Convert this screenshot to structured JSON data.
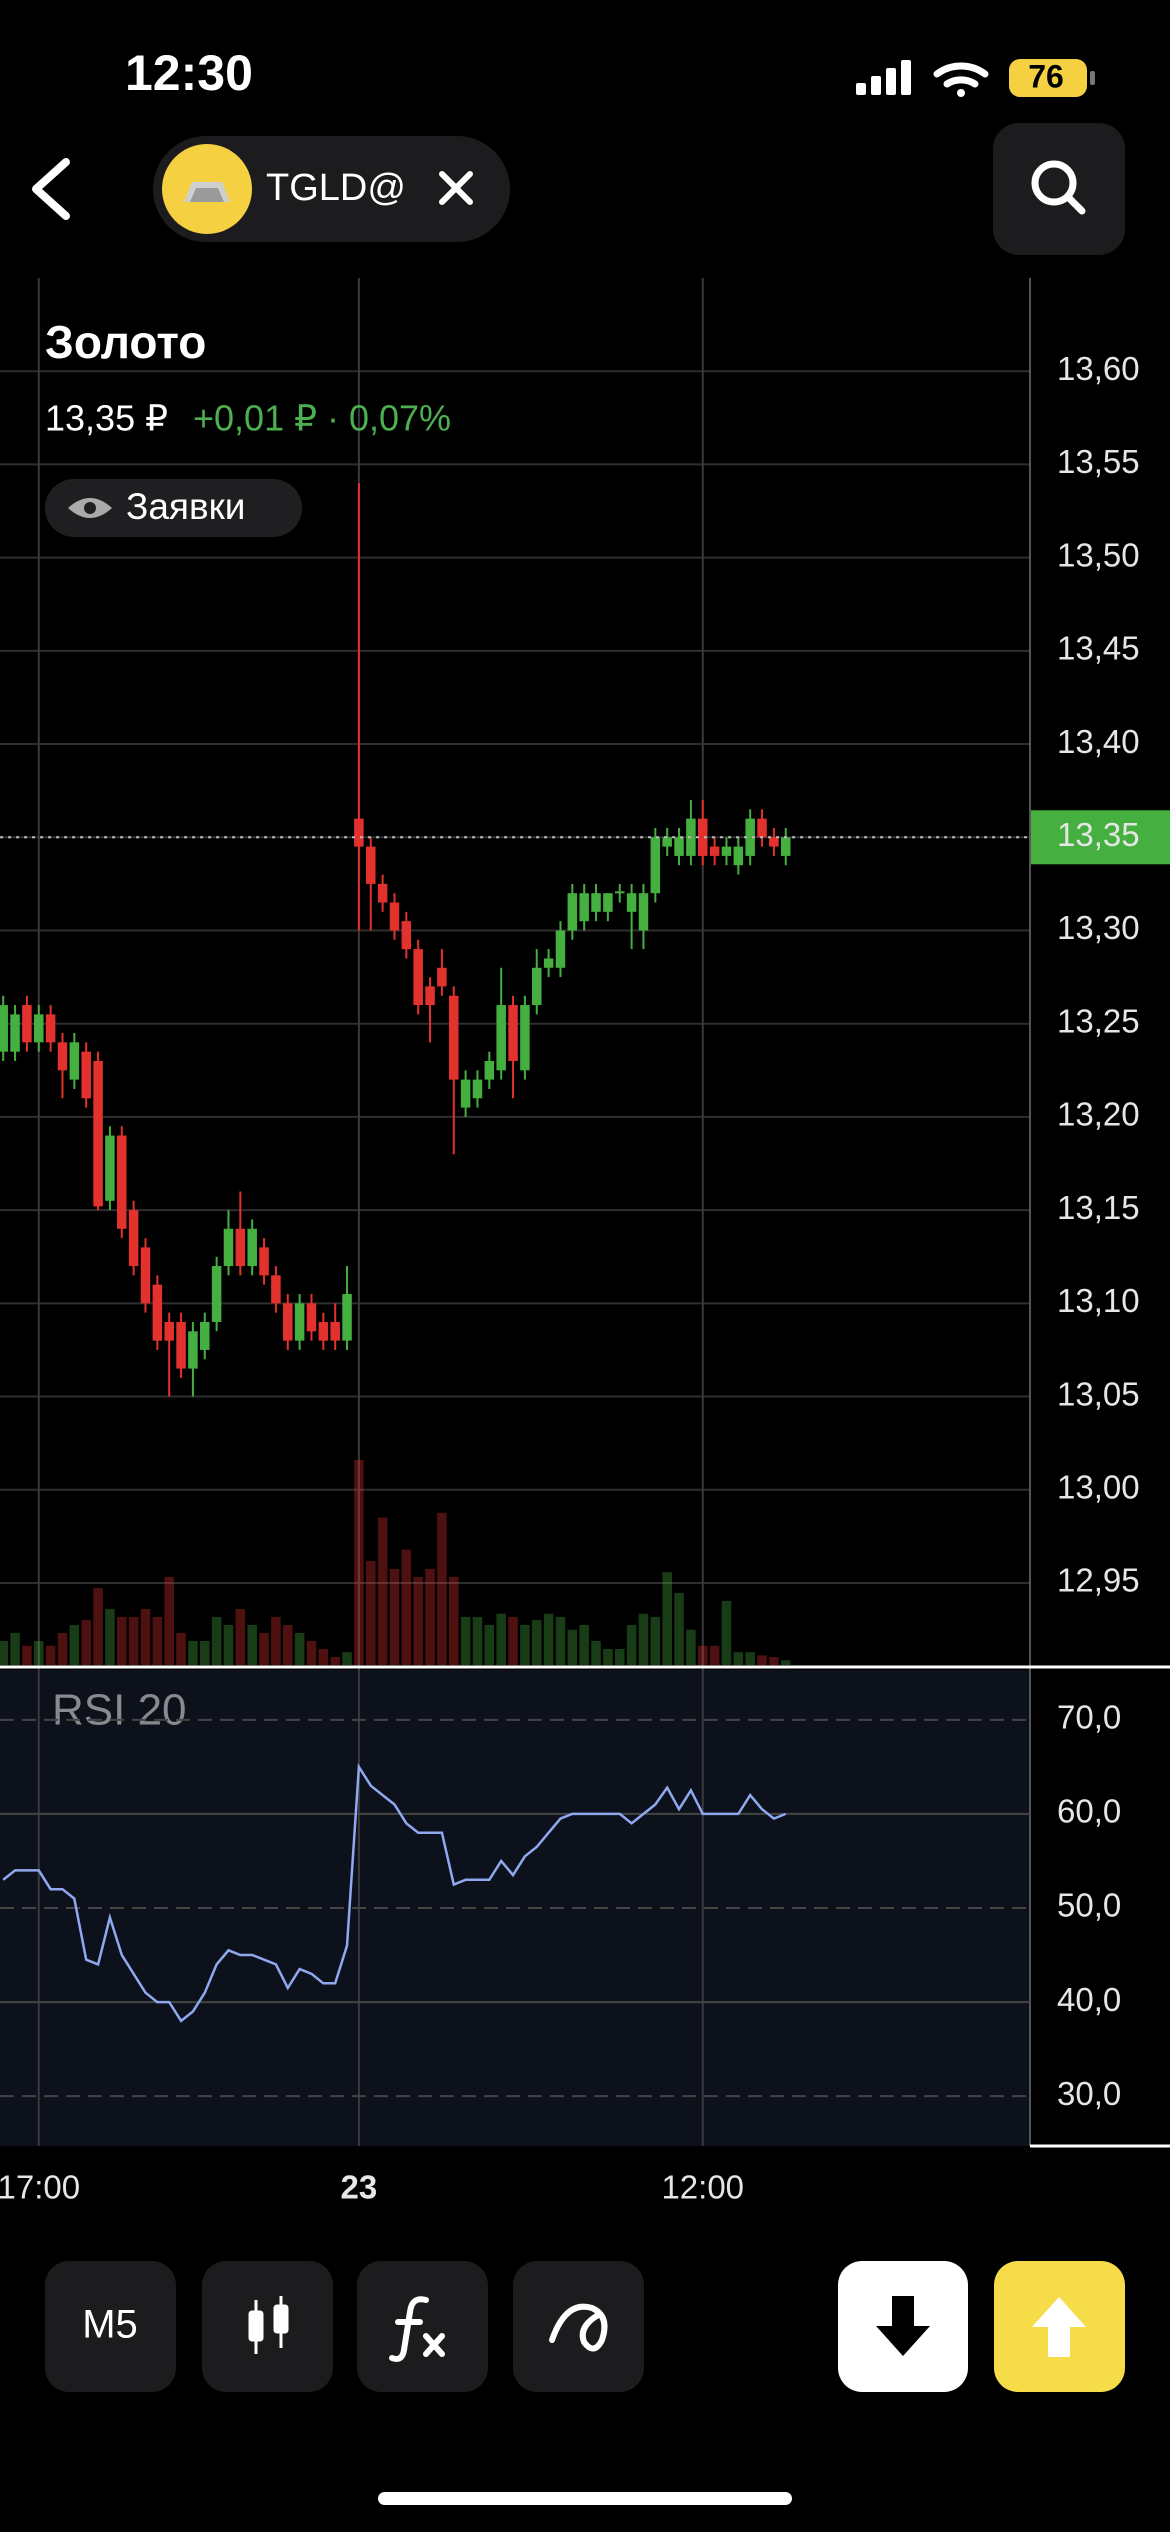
{
  "status_bar": {
    "time": "12:30",
    "battery": "76"
  },
  "header": {
    "ticker": "TGLD@"
  },
  "instrument": {
    "name": "Золото",
    "price": "13,35 ₽",
    "change": "+0,01 ₽ · 0,07%",
    "orders_button": "Заявки"
  },
  "toolbar": {
    "timeframe": "M5"
  },
  "chart_data": [
    {
      "type": "candlestick",
      "xlim": [
        -0.27,
        86.6
      ],
      "xticks": [
        {
          "value": 3,
          "label": "17:00"
        },
        {
          "value": 30,
          "label": "23"
        },
        {
          "value": 59,
          "label": "12:00"
        }
      ],
      "ylim": [
        12.906,
        13.65
      ],
      "yticks": [
        {
          "value": 13.6,
          "label": "13,60"
        },
        {
          "value": 13.55,
          "label": "13,55"
        },
        {
          "value": 13.5,
          "label": "13,50"
        },
        {
          "value": 13.45,
          "label": "13,45"
        },
        {
          "value": 13.4,
          "label": "13,40"
        },
        {
          "value": 13.35,
          "label": "13,35"
        },
        {
          "value": 13.3,
          "label": "13,30"
        },
        {
          "value": 13.25,
          "label": "13,25"
        },
        {
          "value": 13.2,
          "label": "13,20"
        },
        {
          "value": 13.15,
          "label": "13,15"
        },
        {
          "value": 13.1,
          "label": "13,10"
        },
        {
          "value": 13.05,
          "label": "13,05"
        },
        {
          "value": 13.0,
          "label": "13,00"
        },
        {
          "value": 12.95,
          "label": "12,95"
        }
      ],
      "last_price": {
        "value": 13.35,
        "label": "13,35"
      },
      "up_color": "#45b03f",
      "down_color": "#e3322e",
      "grid": true,
      "open": [
        13.235,
        13.235,
        13.26,
        13.24,
        13.255,
        13.24,
        13.22,
        13.235,
        13.23,
        13.155,
        13.19,
        13.15,
        13.13,
        13.11,
        13.09,
        13.09,
        13.065,
        13.075,
        13.09,
        13.12,
        13.14,
        13.12,
        13.13,
        13.115,
        13.1,
        13.08,
        13.1,
        13.09,
        13.09,
        13.08,
        13.36,
        13.345,
        13.325,
        13.315,
        13.305,
        13.29,
        13.27,
        13.28,
        13.265,
        13.205,
        13.21,
        13.22,
        13.225,
        13.26,
        13.225,
        13.26,
        13.28,
        13.28,
        13.3,
        13.305,
        13.31,
        13.31,
        13.32,
        13.31,
        13.3,
        13.32,
        13.345,
        13.34,
        13.34,
        13.36,
        13.345,
        13.34,
        13.335,
        13.34,
        13.36,
        13.35,
        13.34
      ],
      "high": [
        13.265,
        13.26,
        13.265,
        13.26,
        13.26,
        13.245,
        13.245,
        13.24,
        13.235,
        13.195,
        13.195,
        13.155,
        13.135,
        13.115,
        13.095,
        13.095,
        13.09,
        13.095,
        13.125,
        13.15,
        13.16,
        13.145,
        13.135,
        13.12,
        13.105,
        13.105,
        13.105,
        13.095,
        13.1,
        13.12,
        13.54,
        13.35,
        13.33,
        13.32,
        13.31,
        13.295,
        13.275,
        13.29,
        13.27,
        13.225,
        13.225,
        13.235,
        13.28,
        13.265,
        13.265,
        13.29,
        13.29,
        13.305,
        13.325,
        13.325,
        13.325,
        13.32,
        13.325,
        13.325,
        13.325,
        13.355,
        13.355,
        13.355,
        13.37,
        13.37,
        13.35,
        13.35,
        13.35,
        13.365,
        13.365,
        13.355,
        13.355
      ],
      "low": [
        13.23,
        13.23,
        13.235,
        13.235,
        13.235,
        13.21,
        13.215,
        13.205,
        13.15,
        13.15,
        13.135,
        13.115,
        13.095,
        13.075,
        13.05,
        13.06,
        13.05,
        13.07,
        13.085,
        13.115,
        13.115,
        13.115,
        13.11,
        13.095,
        13.075,
        13.075,
        13.08,
        13.075,
        13.075,
        13.075,
        13.3,
        13.3,
        13.31,
        13.295,
        13.285,
        13.255,
        13.24,
        13.265,
        13.18,
        13.2,
        13.205,
        13.215,
        13.22,
        13.21,
        13.22,
        13.255,
        13.275,
        13.275,
        13.295,
        13.3,
        13.305,
        13.305,
        13.315,
        13.29,
        13.29,
        13.315,
        13.34,
        13.335,
        13.335,
        13.335,
        13.335,
        13.335,
        13.33,
        13.335,
        13.345,
        13.34,
        13.335
      ],
      "close": [
        13.26,
        13.255,
        13.24,
        13.255,
        13.24,
        13.225,
        13.24,
        13.21,
        13.152,
        13.19,
        13.14,
        13.12,
        13.1,
        13.08,
        13.08,
        13.065,
        13.085,
        13.09,
        13.12,
        13.14,
        13.12,
        13.14,
        13.115,
        13.1,
        13.08,
        13.1,
        13.085,
        13.08,
        13.08,
        13.105,
        13.345,
        13.325,
        13.315,
        13.3,
        13.29,
        13.26,
        13.26,
        13.27,
        13.22,
        13.22,
        13.22,
        13.23,
        13.26,
        13.23,
        13.26,
        13.28,
        13.285,
        13.3,
        13.32,
        13.32,
        13.32,
        13.32,
        13.321,
        13.32,
        13.32,
        13.35,
        13.35,
        13.35,
        13.36,
        13.34,
        13.34,
        13.345,
        13.345,
        13.36,
        13.35,
        13.345,
        13.35
      ],
      "volume": [
        15,
        20,
        12,
        15,
        12,
        20,
        25,
        28,
        48,
        35,
        30,
        30,
        35,
        30,
        55,
        20,
        15,
        15,
        30,
        25,
        35,
        25,
        20,
        30,
        25,
        20,
        15,
        10,
        5,
        8,
        128,
        65,
        92,
        60,
        72,
        55,
        60,
        95,
        55,
        30,
        30,
        25,
        32,
        30,
        25,
        28,
        32,
        30,
        22,
        25,
        15,
        10,
        10,
        25,
        32,
        30,
        58,
        45,
        22,
        12,
        12,
        40,
        8,
        8,
        6,
        5,
        3
      ]
    },
    {
      "type": "line",
      "title": "RSI 20",
      "color": "#8fa8f0",
      "xlim": [
        -0.27,
        86.6
      ],
      "ylim": [
        24.7,
        75.3
      ],
      "yticks": [
        {
          "value": 70,
          "label": "70,0"
        },
        {
          "value": 60,
          "label": "60,0"
        },
        {
          "value": 50,
          "label": "50,0"
        },
        {
          "value": 40,
          "label": "40,0"
        },
        {
          "value": 30,
          "label": "30,0"
        }
      ],
      "values": [
        53,
        54,
        54,
        54,
        52,
        52,
        51,
        44.5,
        44,
        49,
        45,
        43,
        41,
        40,
        40,
        38,
        39,
        41,
        44,
        45.5,
        45,
        45,
        44.5,
        44,
        41.5,
        43.5,
        43,
        42,
        42,
        46,
        65,
        63,
        62,
        61,
        59,
        58,
        58,
        58,
        52.5,
        53,
        53,
        53,
        55,
        53.5,
        55.5,
        56.5,
        58,
        59.5,
        60,
        60,
        60,
        60,
        60,
        59,
        60,
        61,
        62.8,
        60.5,
        62.5,
        60,
        60,
        60,
        60,
        62,
        60.5,
        59.5,
        60
      ]
    }
  ]
}
